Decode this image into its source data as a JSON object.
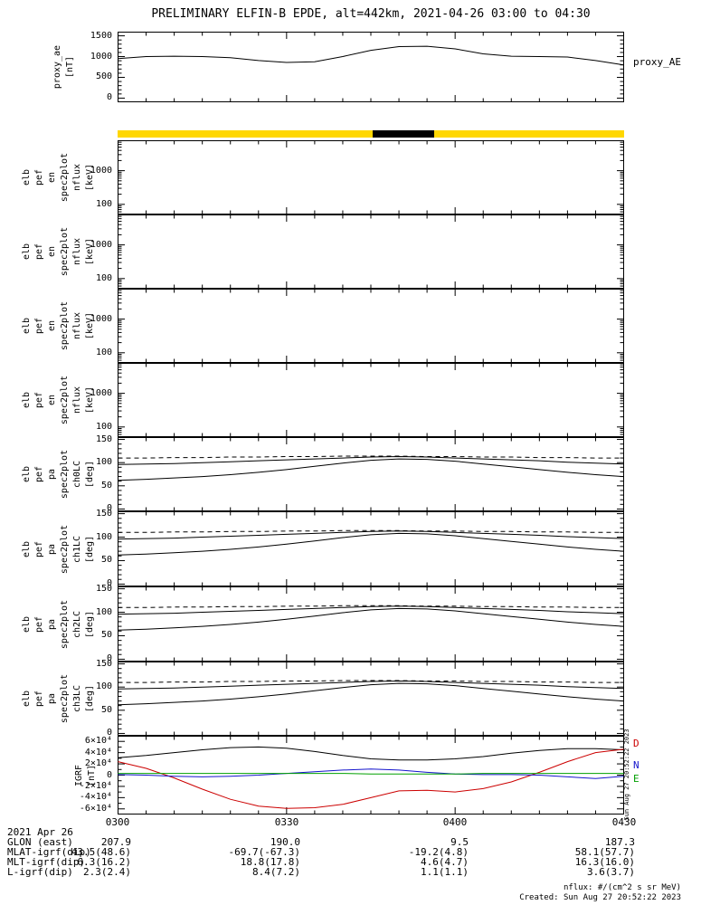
{
  "title": "PRELIMINARY ELFIN-B EPDE, alt=442km, 2021-04-26 03:00 to 04:30",
  "colors": {
    "frame": "#000000",
    "science_bar_yellow": "#FFD700",
    "science_bar_black": "#000000",
    "igrf_b": "#000000",
    "igrf_d": "#CC0000",
    "igrf_n": "#1414CC",
    "igrf_e": "#00A000"
  },
  "x_axis": {
    "labels": [
      "0300",
      "0330",
      "0400",
      "0430"
    ],
    "range_minutes": [
      0,
      90
    ],
    "major_tick_min": 30,
    "minor_tick_min": 5
  },
  "pitch_curves": {
    "x_minutes": [
      0,
      5,
      10,
      15,
      20,
      25,
      30,
      35,
      40,
      45,
      50,
      55,
      60,
      65,
      70,
      75,
      80,
      85,
      90
    ],
    "loss_cone_lower": [
      62,
      64,
      67,
      70,
      74,
      79,
      85,
      92,
      99,
      105,
      108,
      107,
      103,
      97,
      91,
      85,
      79,
      74,
      70
    ],
    "loss_cone_upper": [
      96,
      97,
      98,
      100,
      102,
      104,
      106,
      108,
      110,
      112,
      113,
      112,
      110,
      108,
      106,
      104,
      101,
      99,
      97
    ],
    "dashed_reference": [
      110,
      110,
      111,
      111,
      112,
      112,
      113,
      113,
      114,
      114,
      114,
      113,
      113,
      112,
      112,
      111,
      111,
      110,
      110
    ]
  },
  "chart_data": [
    {
      "id": "proxy",
      "type": "line",
      "right_label": "proxy_AE",
      "ylabel_lines": [
        "proxy_ae",
        "[nT]"
      ],
      "ylim": [
        -100,
        1600
      ],
      "yticks": [
        0,
        500,
        1000,
        1500
      ],
      "ytick_labels": [
        "0",
        "500",
        "1000",
        "1500"
      ],
      "minor_step": 100,
      "x_minutes": [
        0,
        5,
        10,
        15,
        20,
        25,
        30,
        35,
        40,
        45,
        50,
        55,
        60,
        65,
        70,
        75,
        80,
        85,
        90
      ],
      "series": [
        {
          "name": "proxy_AE",
          "color": "#000000",
          "values": [
            950,
            1000,
            1010,
            1000,
            975,
            905,
            860,
            875,
            1000,
            1150,
            1240,
            1250,
            1185,
            1065,
            1010,
            1000,
            990,
            905,
            800
          ]
        }
      ]
    },
    {
      "id": "szbar",
      "type": "interval-bar",
      "base_color": "#FFD700",
      "segments": [
        {
          "start_frac": 0.504,
          "end_frac": 0.625,
          "color": "#000000"
        }
      ]
    },
    {
      "id": "spec0",
      "type": "log-empty",
      "ylabel_lines": [
        "elb",
        "pef",
        "en",
        "spec2plot",
        "nflux",
        "[keV]"
      ],
      "log_ylim": [
        50,
        8000
      ],
      "yticks": [
        100,
        1000
      ],
      "ytick_labels": [
        "100",
        "1000"
      ]
    },
    {
      "id": "spec1",
      "type": "log-empty",
      "ylabel_lines": [
        "elb",
        "pef",
        "en",
        "spec2plot",
        "nflux",
        "[keV]"
      ],
      "log_ylim": [
        50,
        8000
      ],
      "yticks": [
        100,
        1000
      ],
      "ytick_labels": [
        "100",
        "1000"
      ]
    },
    {
      "id": "spec2",
      "type": "log-empty",
      "ylabel_lines": [
        "elb",
        "pef",
        "en",
        "spec2plot",
        "nflux",
        "[keV]"
      ],
      "log_ylim": [
        50,
        8000
      ],
      "yticks": [
        100,
        1000
      ],
      "ytick_labels": [
        "100",
        "1000"
      ]
    },
    {
      "id": "spec3",
      "type": "log-empty",
      "ylabel_lines": [
        "elb",
        "pef",
        "en",
        "spec2plot",
        "nflux",
        "[keV]"
      ],
      "log_ylim": [
        50,
        8000
      ],
      "yticks": [
        100,
        1000
      ],
      "ytick_labels": [
        "100",
        "1000"
      ]
    },
    {
      "id": "pitch0",
      "type": "line",
      "channel": "ch0LC",
      "ylabel_lines": [
        "elb",
        "pef",
        "pa",
        "spec2plot",
        "ch0LC",
        "[deg]"
      ],
      "ylim": [
        -5,
        155
      ],
      "yticks": [
        0,
        50,
        100,
        150
      ],
      "ytick_labels": [
        "0",
        "50",
        "100",
        "150"
      ],
      "minor_step": 10,
      "series_from": "pitch_curves"
    },
    {
      "id": "pitch1",
      "type": "line",
      "channel": "ch1LC",
      "ylabel_lines": [
        "elb",
        "pef",
        "pa",
        "spec2plot",
        "ch1LC",
        "[deg]"
      ],
      "ylim": [
        -5,
        155
      ],
      "yticks": [
        0,
        50,
        100,
        150
      ],
      "ytick_labels": [
        "0",
        "50",
        "100",
        "150"
      ],
      "minor_step": 10,
      "series_from": "pitch_curves"
    },
    {
      "id": "pitch2",
      "type": "line",
      "channel": "ch2LC",
      "ylabel_lines": [
        "elb",
        "pef",
        "pa",
        "spec2plot",
        "ch2LC",
        "[deg]"
      ],
      "ylim": [
        -5,
        155
      ],
      "yticks": [
        0,
        50,
        100,
        150
      ],
      "ytick_labels": [
        "0",
        "50",
        "100",
        "150"
      ],
      "minor_step": 10,
      "series_from": "pitch_curves"
    },
    {
      "id": "pitch3",
      "type": "line",
      "channel": "ch3LC",
      "ylabel_lines": [
        "elb",
        "pef",
        "pa",
        "spec2plot",
        "ch3LC",
        "[deg]"
      ],
      "ylim": [
        -5,
        155
      ],
      "yticks": [
        0,
        50,
        100,
        150
      ],
      "ytick_labels": [
        "0",
        "50",
        "100",
        "150"
      ],
      "minor_step": 10,
      "series_from": "pitch_curves"
    },
    {
      "id": "igrf",
      "type": "line",
      "ylabel_lines": [
        "IGRF",
        "[nT]"
      ],
      "ylim": [
        -70000,
        70000
      ],
      "yticks": [
        60000,
        40000,
        20000,
        0,
        -20000,
        -40000,
        -60000
      ],
      "ytick_labels": [
        "6×10⁴",
        "4×10⁴",
        "2×10⁴",
        "0",
        "-2×10⁴",
        "-4×10⁴",
        "-6×10⁴"
      ],
      "minor_step": 10000,
      "x_minutes": [
        0,
        5,
        10,
        15,
        20,
        25,
        30,
        35,
        40,
        45,
        50,
        55,
        60,
        65,
        70,
        75,
        80,
        85,
        90
      ],
      "series": [
        {
          "name": "B",
          "color": "#000000",
          "values": [
            31000,
            35000,
            40000,
            45000,
            49000,
            50000,
            48000,
            42000,
            35000,
            29000,
            27000,
            27000,
            29000,
            33000,
            39000,
            44000,
            47000,
            47000,
            45000
          ]
        },
        {
          "name": "D",
          "color": "#CC0000",
          "values": [
            24000,
            12000,
            -5000,
            -25000,
            -43000,
            -55000,
            -59000,
            -58000,
            -52000,
            -40000,
            -28000,
            -27000,
            -30000,
            -24000,
            -12000,
            5000,
            24000,
            40000,
            46000
          ]
        },
        {
          "name": "N",
          "color": "#1414CC",
          "values": [
            1000,
            0,
            -2000,
            -3000,
            -2000,
            0,
            3000,
            6000,
            9000,
            11000,
            9000,
            5000,
            2000,
            1000,
            1000,
            0,
            -3000,
            -6000,
            -2000
          ]
        },
        {
          "name": "E",
          "color": "#00A000",
          "values": [
            3000,
            3000,
            3000,
            3000,
            3000,
            3000,
            3000,
            3000,
            3000,
            2000,
            2000,
            2000,
            2000,
            3000,
            3000,
            3000,
            3000,
            3000,
            3000
          ]
        }
      ],
      "legend": [
        {
          "label": "D",
          "color": "#CC0000"
        },
        {
          "label": "N",
          "color": "#1414CC"
        },
        {
          "label": "E",
          "color": "#00A000"
        }
      ]
    }
  ],
  "footer_table": {
    "date": "2021 Apr 26",
    "rows": [
      {
        "label": "GLON (east)",
        "values": [
          "207.9",
          "190.0",
          "9.5",
          "187.3"
        ]
      },
      {
        "label": "MLAT-igrf(dip)",
        "values": [
          "43.5(48.6)",
          "-69.7(-67.3)",
          "-19.2(4.8)",
          "58.1(57.7)"
        ]
      },
      {
        "label": "MLT-igrf(dip)",
        "values": [
          "6.3(16.2)",
          "18.8(17.8)",
          "4.6(4.7)",
          "16.3(16.0)"
        ]
      },
      {
        "label": "L-igrf(dip)",
        "values": [
          "2.3(2.4)",
          "8.4(7.2)",
          "1.1(1.1)",
          "3.6(3.7)"
        ]
      }
    ]
  },
  "footer_notes": {
    "flux_units": "nflux: #/(cm^2 s sr MeV)",
    "created": "Created: Sun Aug 27 20:52:22 2023"
  },
  "side_timestamp": "Sun Aug 27 20:52:22 2023"
}
